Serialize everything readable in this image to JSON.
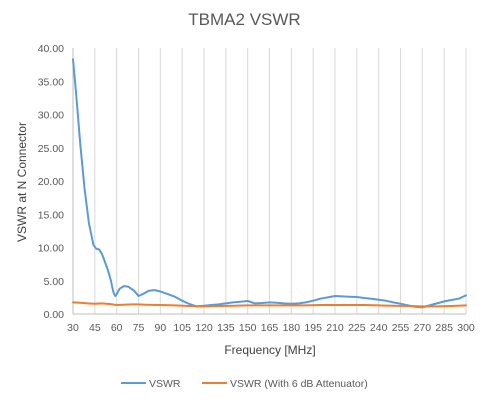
{
  "chart_data": {
    "type": "line",
    "title": "TBMA2 VSWR",
    "xlabel": "Frequency [MHz]",
    "ylabel": "VSWR at N Connector",
    "xlim": [
      30,
      300
    ],
    "ylim": [
      0,
      40
    ],
    "x_ticks": [
      "30",
      "45",
      "60",
      "75",
      "90",
      "105",
      "120",
      "135",
      "150",
      "165",
      "180",
      "195",
      "210",
      "225",
      "240",
      "255",
      "270",
      "285",
      "300"
    ],
    "y_ticks": [
      "0.00",
      "5.00",
      "10.00",
      "15.00",
      "20.00",
      "25.00",
      "30.00",
      "35.00",
      "40.00"
    ],
    "grid": "vertical",
    "legend_position": "bottom",
    "colors": {
      "VSWR": "#5b9bd5",
      "VSWR (With 6 dB Attenuator)": "#ed7d31"
    },
    "series": [
      {
        "name": "VSWR",
        "x": [
          30,
          32,
          35,
          38,
          41,
          44,
          46,
          48,
          50,
          52,
          54,
          56,
          57,
          58,
          59,
          60,
          62,
          65,
          68,
          72,
          75,
          78,
          82,
          86,
          90,
          95,
          100,
          105,
          110,
          115,
          120,
          125,
          130,
          135,
          140,
          145,
          150,
          155,
          160,
          165,
          170,
          175,
          180,
          185,
          190,
          195,
          200,
          205,
          210,
          215,
          220,
          225,
          230,
          235,
          240,
          245,
          250,
          255,
          260,
          265,
          270,
          275,
          280,
          285,
          290,
          295,
          300
        ],
        "y": [
          38.3,
          33.5,
          25.5,
          18.8,
          13.6,
          10.4,
          9.8,
          9.7,
          9.0,
          7.8,
          6.6,
          5.1,
          4.0,
          3.1,
          2.7,
          3.0,
          3.8,
          4.2,
          4.1,
          3.5,
          2.7,
          3.0,
          3.5,
          3.6,
          3.4,
          3.0,
          2.6,
          2.0,
          1.5,
          1.15,
          1.25,
          1.35,
          1.45,
          1.6,
          1.75,
          1.85,
          1.95,
          1.6,
          1.65,
          1.75,
          1.7,
          1.6,
          1.55,
          1.6,
          1.75,
          2.0,
          2.3,
          2.5,
          2.7,
          2.65,
          2.6,
          2.55,
          2.4,
          2.3,
          2.15,
          2.0,
          1.75,
          1.55,
          1.3,
          1.1,
          1.0,
          1.3,
          1.6,
          1.9,
          2.1,
          2.3,
          2.8
        ]
      },
      {
        "name": "VSWR (With 6 dB Attenuator)",
        "x": [
          30,
          35,
          40,
          45,
          50,
          55,
          60,
          65,
          70,
          75,
          80,
          90,
          100,
          110,
          120,
          130,
          140,
          150,
          160,
          170,
          180,
          190,
          200,
          210,
          220,
          230,
          240,
          250,
          260,
          270,
          280,
          290,
          300
        ],
        "y": [
          1.75,
          1.7,
          1.6,
          1.55,
          1.6,
          1.5,
          1.35,
          1.4,
          1.45,
          1.45,
          1.4,
          1.35,
          1.3,
          1.2,
          1.15,
          1.2,
          1.25,
          1.3,
          1.3,
          1.3,
          1.3,
          1.3,
          1.35,
          1.35,
          1.35,
          1.35,
          1.3,
          1.25,
          1.2,
          1.15,
          1.15,
          1.2,
          1.3
        ]
      }
    ]
  }
}
